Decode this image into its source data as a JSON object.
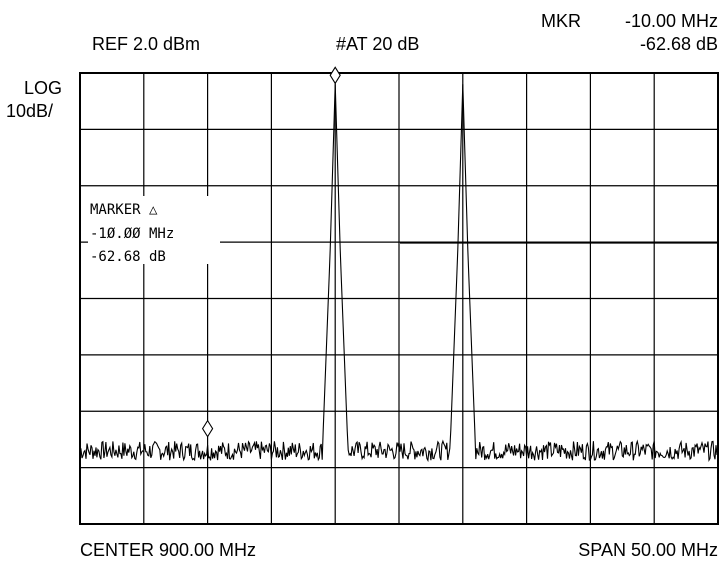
{
  "header": {
    "ref_level": "REF 2.0 dBm",
    "attenuation": "#AT 20 dB",
    "marker_label": "MKR",
    "marker_freq": "-10.00 MHz",
    "marker_level": "-62.68 dB"
  },
  "scale": {
    "mode": "LOG",
    "per_div": "10dB/"
  },
  "footer": {
    "center": "CENTER 900.00 MHz",
    "span": "SPAN 50.00 MHz"
  },
  "marker_box": {
    "line1": "MARKER △",
    "line2": "-1Ø.ØØ MHz",
    "line3": "-62.68 dB"
  },
  "chart_data": {
    "type": "line",
    "title": "",
    "xlabel": "",
    "ylabel": "",
    "center_mhz": 900.0,
    "span_mhz": 50.0,
    "xlim": [
      875.0,
      925.0
    ],
    "ref_dbm": 2.0,
    "db_per_div": 10,
    "ylim": [
      -78.0,
      2.0
    ],
    "grid": true,
    "x_divisions": 10,
    "y_divisions": 8,
    "noise_floor_dbm": -65.0,
    "series": [
      {
        "x": [
          875.0,
          894.0,
          894.6,
          895.0,
          895.4,
          896.0,
          904.0,
          904.6,
          905.0,
          905.4,
          906.0,
          925.0
        ],
        "y": [
          -65.0,
          -65.0,
          -30.0,
          0.0,
          -30.0,
          -65.0,
          -65.0,
          -30.0,
          0.0,
          -30.0,
          -65.0,
          -65.0
        ]
      }
    ],
    "markers": [
      {
        "x": 895.0,
        "y": 0.0
      },
      {
        "x": 885.0,
        "y": -62.68
      }
    ]
  }
}
